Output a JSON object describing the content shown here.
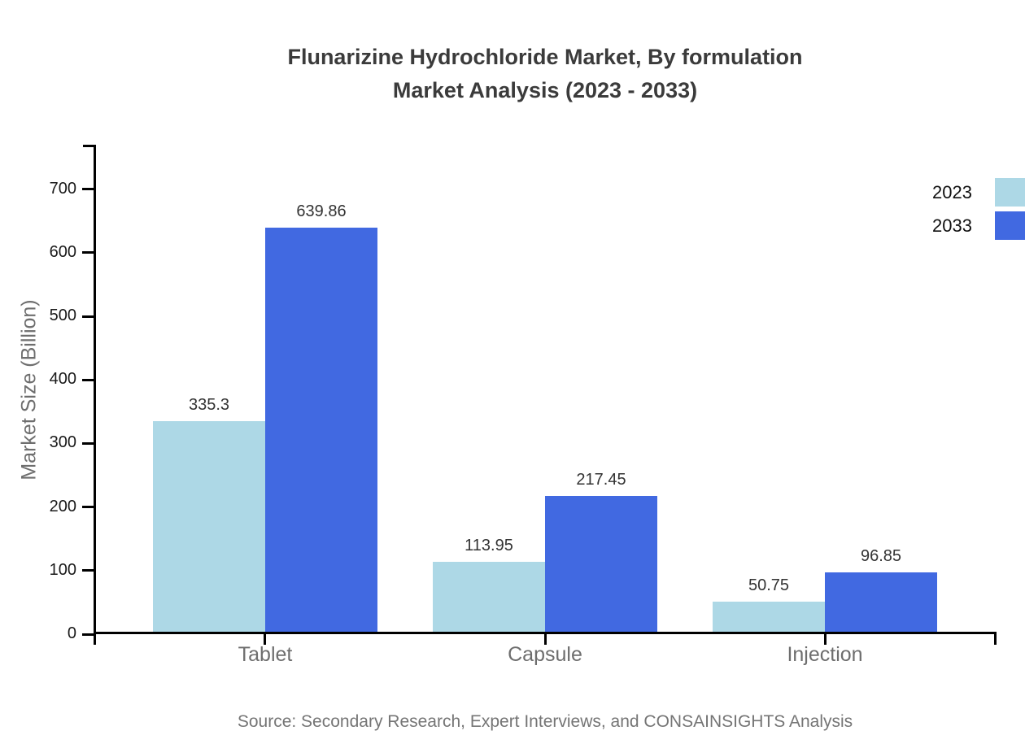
{
  "title": {
    "line1": "Flunarizine Hydrochloride Market, By formulation",
    "line2": "Market Analysis (2023 - 2033)"
  },
  "chart_data": {
    "type": "bar",
    "categories": [
      "Tablet",
      "Capsule",
      "Injection"
    ],
    "series": [
      {
        "name": "2023",
        "color": "#ADD8E6",
        "values": [
          335.3,
          113.95,
          50.75
        ]
      },
      {
        "name": "2033",
        "color": "#4169E1",
        "values": [
          639.86,
          217.45,
          96.85
        ]
      }
    ],
    "title": "Flunarizine Hydrochloride Market, By formulation Market Analysis (2023 - 2033)",
    "xlabel": "",
    "ylabel": "Market Size (Billion)",
    "ylim": [
      0,
      770
    ],
    "yticks": [
      0,
      100,
      200,
      300,
      400,
      500,
      600,
      700
    ],
    "grid": false,
    "legend_position": "top-right",
    "value_labels_shown": true
  },
  "footer": {
    "source": "Source: Secondary Research, Expert Interviews, and CONSAINSIGHTS Analysis"
  },
  "colors": {
    "series_2023": "#ADD8E6",
    "series_2033": "#4169E1",
    "axis": "#000000",
    "title_text": "#3b3b3b",
    "axis_label_text": "#6e6e6e",
    "tick_text": "#1a1a1a",
    "value_text": "#333333",
    "source_text": "#757575"
  }
}
